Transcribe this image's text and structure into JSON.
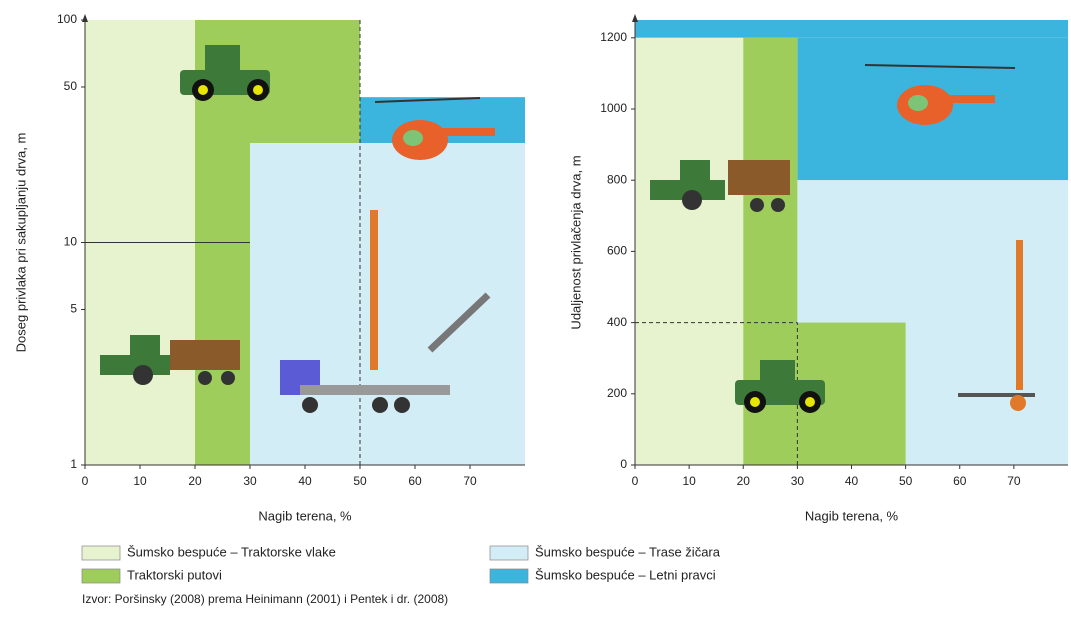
{
  "chart_data": [
    {
      "type": "region",
      "y_label": "Doseg privlaka pri sakupljanju drva, m",
      "x_label": "Nagib terena, %",
      "xlim": [
        0,
        80
      ],
      "ylim": [
        1,
        100
      ],
      "log_y": true,
      "xticks": [
        0,
        10,
        20,
        30,
        40,
        50,
        60,
        70
      ],
      "yticks": [
        1,
        5,
        10,
        50,
        100
      ],
      "regions": [
        {
          "x": [
            0,
            20
          ],
          "y": [
            1,
            100
          ],
          "color": "#e7f2cf"
        },
        {
          "x": [
            20,
            30
          ],
          "y": [
            1,
            100
          ],
          "color": "#9fcd5c"
        },
        {
          "x": [
            30,
            50
          ],
          "y": [
            28,
            100
          ],
          "color": "#9fcd5c"
        },
        {
          "x": [
            30,
            80
          ],
          "y": [
            1,
            28
          ],
          "color": "#d3edf6"
        },
        {
          "x": [
            50,
            80
          ],
          "y": [
            28,
            45
          ],
          "color": "#3bb5dd"
        }
      ],
      "lines": [
        {
          "x": [
            0,
            30
          ],
          "y": [
            10,
            10
          ],
          "dashed": false
        },
        {
          "x": [
            50,
            50
          ],
          "y": [
            1,
            100
          ],
          "dashed": true
        }
      ]
    },
    {
      "type": "region",
      "y_label": "Udaljenost privlačenja drva, m",
      "x_label": "Nagib terena, %",
      "xlim": [
        0,
        80
      ],
      "ylim": [
        0,
        1250
      ],
      "log_y": false,
      "xticks": [
        0,
        10,
        20,
        30,
        40,
        50,
        60,
        70
      ],
      "yticks": [
        0,
        200,
        400,
        600,
        800,
        1000,
        1200
      ],
      "regions": [
        {
          "x": [
            0,
            80
          ],
          "y": [
            1200,
            1250
          ],
          "color": "#3bb5dd"
        },
        {
          "x": [
            30,
            80
          ],
          "y": [
            800,
            1200
          ],
          "color": "#3bb5dd"
        },
        {
          "x": [
            30,
            80
          ],
          "y": [
            0,
            800
          ],
          "color": "#d3edf6"
        },
        {
          "x": [
            0,
            20
          ],
          "y": [
            0,
            1200
          ],
          "color": "#e7f2cf"
        },
        {
          "x": [
            20,
            30
          ],
          "y": [
            0,
            1200
          ],
          "color": "#9fcd5c"
        },
        {
          "x": [
            30,
            50
          ],
          "y": [
            0,
            400
          ],
          "color": "#9fcd5c"
        }
      ],
      "lines": [
        {
          "x": [
            0,
            30
          ],
          "y": [
            400,
            400
          ],
          "dashed": true
        },
        {
          "x": [
            30,
            30
          ],
          "y": [
            0,
            400
          ],
          "dashed": true
        }
      ]
    }
  ],
  "legend": [
    {
      "name": "Šumsko bespuće – Traktorske vlake",
      "color": "#e7f2cf"
    },
    {
      "name": "Traktorski putovi",
      "color": "#9fcd5c"
    },
    {
      "name": "Šumsko bespuće – Trase žičara",
      "color": "#d3edf6"
    },
    {
      "name": "Šumsko bespuće – Letni pravci",
      "color": "#3bb5dd"
    }
  ],
  "source": "Izvor: Poršinsky (2008) prema Heinimann (2001) i Pentek i dr. (2008)"
}
